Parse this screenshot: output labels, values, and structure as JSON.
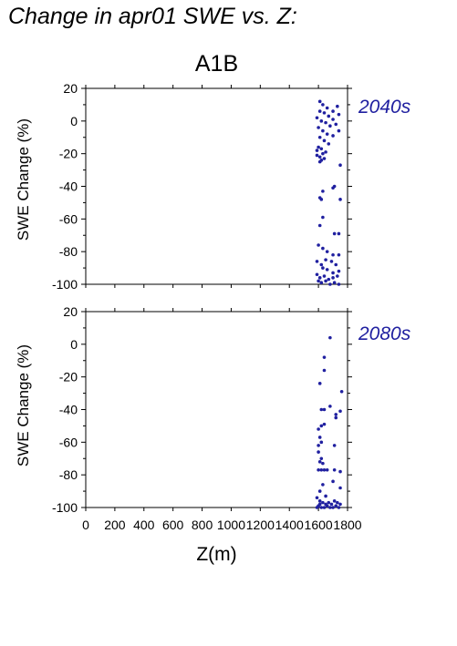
{
  "page": {
    "heading": "Change in apr01 SWE vs. Z:",
    "scenario": "A1B",
    "accent_color": "#2020a0"
  },
  "chart_data": [
    {
      "type": "scatter",
      "period_label": "2040s",
      "ylabel": "SWE Change (%)",
      "xlabel": "",
      "xlim": [
        0,
        1800
      ],
      "ylim": [
        -100,
        20
      ],
      "yticks": [
        20,
        0,
        -20,
        -40,
        -60,
        -80,
        -100
      ],
      "grid": false,
      "points": [
        [
          1610,
          12
        ],
        [
          1630,
          10
        ],
        [
          1660,
          8
        ],
        [
          1700,
          6
        ],
        [
          1730,
          9
        ],
        [
          1610,
          6
        ],
        [
          1640,
          5
        ],
        [
          1670,
          3
        ],
        [
          1700,
          1
        ],
        [
          1740,
          4
        ],
        [
          1590,
          2
        ],
        [
          1620,
          0
        ],
        [
          1650,
          -1
        ],
        [
          1680,
          -3
        ],
        [
          1720,
          -2
        ],
        [
          1600,
          -4
        ],
        [
          1630,
          -6
        ],
        [
          1660,
          -8
        ],
        [
          1700,
          -9
        ],
        [
          1740,
          -6
        ],
        [
          1610,
          -10
        ],
        [
          1640,
          -12
        ],
        [
          1670,
          -14
        ],
        [
          1600,
          -16
        ],
        [
          1620,
          -17
        ],
        [
          1590,
          -18
        ],
        [
          1630,
          -20
        ],
        [
          1650,
          -19
        ],
        [
          1610,
          -22
        ],
        [
          1590,
          -21
        ],
        [
          1620,
          -24
        ],
        [
          1640,
          -23
        ],
        [
          1610,
          -25
        ],
        [
          1750,
          -27
        ],
        [
          1630,
          -43
        ],
        [
          1710,
          -40
        ],
        [
          1610,
          -47
        ],
        [
          1620,
          -48
        ],
        [
          1700,
          -41
        ],
        [
          1750,
          -48
        ],
        [
          1630,
          -59
        ],
        [
          1610,
          -64
        ],
        [
          1710,
          -69
        ],
        [
          1740,
          -69
        ],
        [
          1600,
          -76
        ],
        [
          1630,
          -78
        ],
        [
          1660,
          -80
        ],
        [
          1700,
          -82
        ],
        [
          1740,
          -82
        ],
        [
          1590,
          -86
        ],
        [
          1620,
          -88
        ],
        [
          1650,
          -85
        ],
        [
          1690,
          -86
        ],
        [
          1720,
          -88
        ],
        [
          1630,
          -90
        ],
        [
          1660,
          -91
        ],
        [
          1700,
          -93
        ],
        [
          1740,
          -92
        ],
        [
          1590,
          -94
        ],
        [
          1610,
          -96
        ],
        [
          1640,
          -95
        ],
        [
          1670,
          -97
        ],
        [
          1700,
          -96
        ],
        [
          1730,
          -95
        ],
        [
          1600,
          -98
        ],
        [
          1620,
          -99
        ],
        [
          1650,
          -98
        ],
        [
          1680,
          -100
        ],
        [
          1710,
          -99
        ],
        [
          1740,
          -100
        ]
      ]
    },
    {
      "type": "scatter",
      "period_label": "2080s",
      "ylabel": "SWE Change (%)",
      "xlabel": "Z(m)",
      "xlim": [
        0,
        1800
      ],
      "ylim": [
        -100,
        20
      ],
      "xticks": [
        0,
        200,
        400,
        600,
        800,
        1000,
        1200,
        1400,
        1600,
        1800
      ],
      "yticks": [
        20,
        0,
        -20,
        -40,
        -60,
        -80,
        -100
      ],
      "grid": false,
      "points": [
        [
          1680,
          4
        ],
        [
          1640,
          -8
        ],
        [
          1640,
          -16
        ],
        [
          1610,
          -24
        ],
        [
          1760,
          -29
        ],
        [
          1620,
          -40
        ],
        [
          1640,
          -40
        ],
        [
          1680,
          -38
        ],
        [
          1720,
          -43
        ],
        [
          1720,
          -45
        ],
        [
          1750,
          -41
        ],
        [
          1600,
          -52
        ],
        [
          1620,
          -50
        ],
        [
          1640,
          -49
        ],
        [
          1610,
          -57
        ],
        [
          1620,
          -60
        ],
        [
          1600,
          -62
        ],
        [
          1710,
          -62
        ],
        [
          1600,
          -66
        ],
        [
          1620,
          -70
        ],
        [
          1610,
          -72
        ],
        [
          1630,
          -73
        ],
        [
          1600,
          -77
        ],
        [
          1620,
          -77
        ],
        [
          1640,
          -77
        ],
        [
          1660,
          -77
        ],
        [
          1710,
          -77
        ],
        [
          1750,
          -78
        ],
        [
          1700,
          -84
        ],
        [
          1750,
          -88
        ],
        [
          1630,
          -86
        ],
        [
          1610,
          -90
        ],
        [
          1650,
          -93
        ],
        [
          1590,
          -94
        ],
        [
          1610,
          -96
        ],
        [
          1630,
          -97
        ],
        [
          1650,
          -98
        ],
        [
          1670,
          -97
        ],
        [
          1690,
          -98
        ],
        [
          1710,
          -96
        ],
        [
          1730,
          -97
        ],
        [
          1750,
          -98
        ],
        [
          1600,
          -99
        ],
        [
          1620,
          -100
        ],
        [
          1640,
          -100
        ],
        [
          1660,
          -99
        ],
        [
          1680,
          -100
        ],
        [
          1700,
          -100
        ],
        [
          1720,
          -99
        ],
        [
          1740,
          -100
        ],
        [
          1590,
          -100
        ],
        [
          1610,
          -98
        ]
      ]
    }
  ]
}
